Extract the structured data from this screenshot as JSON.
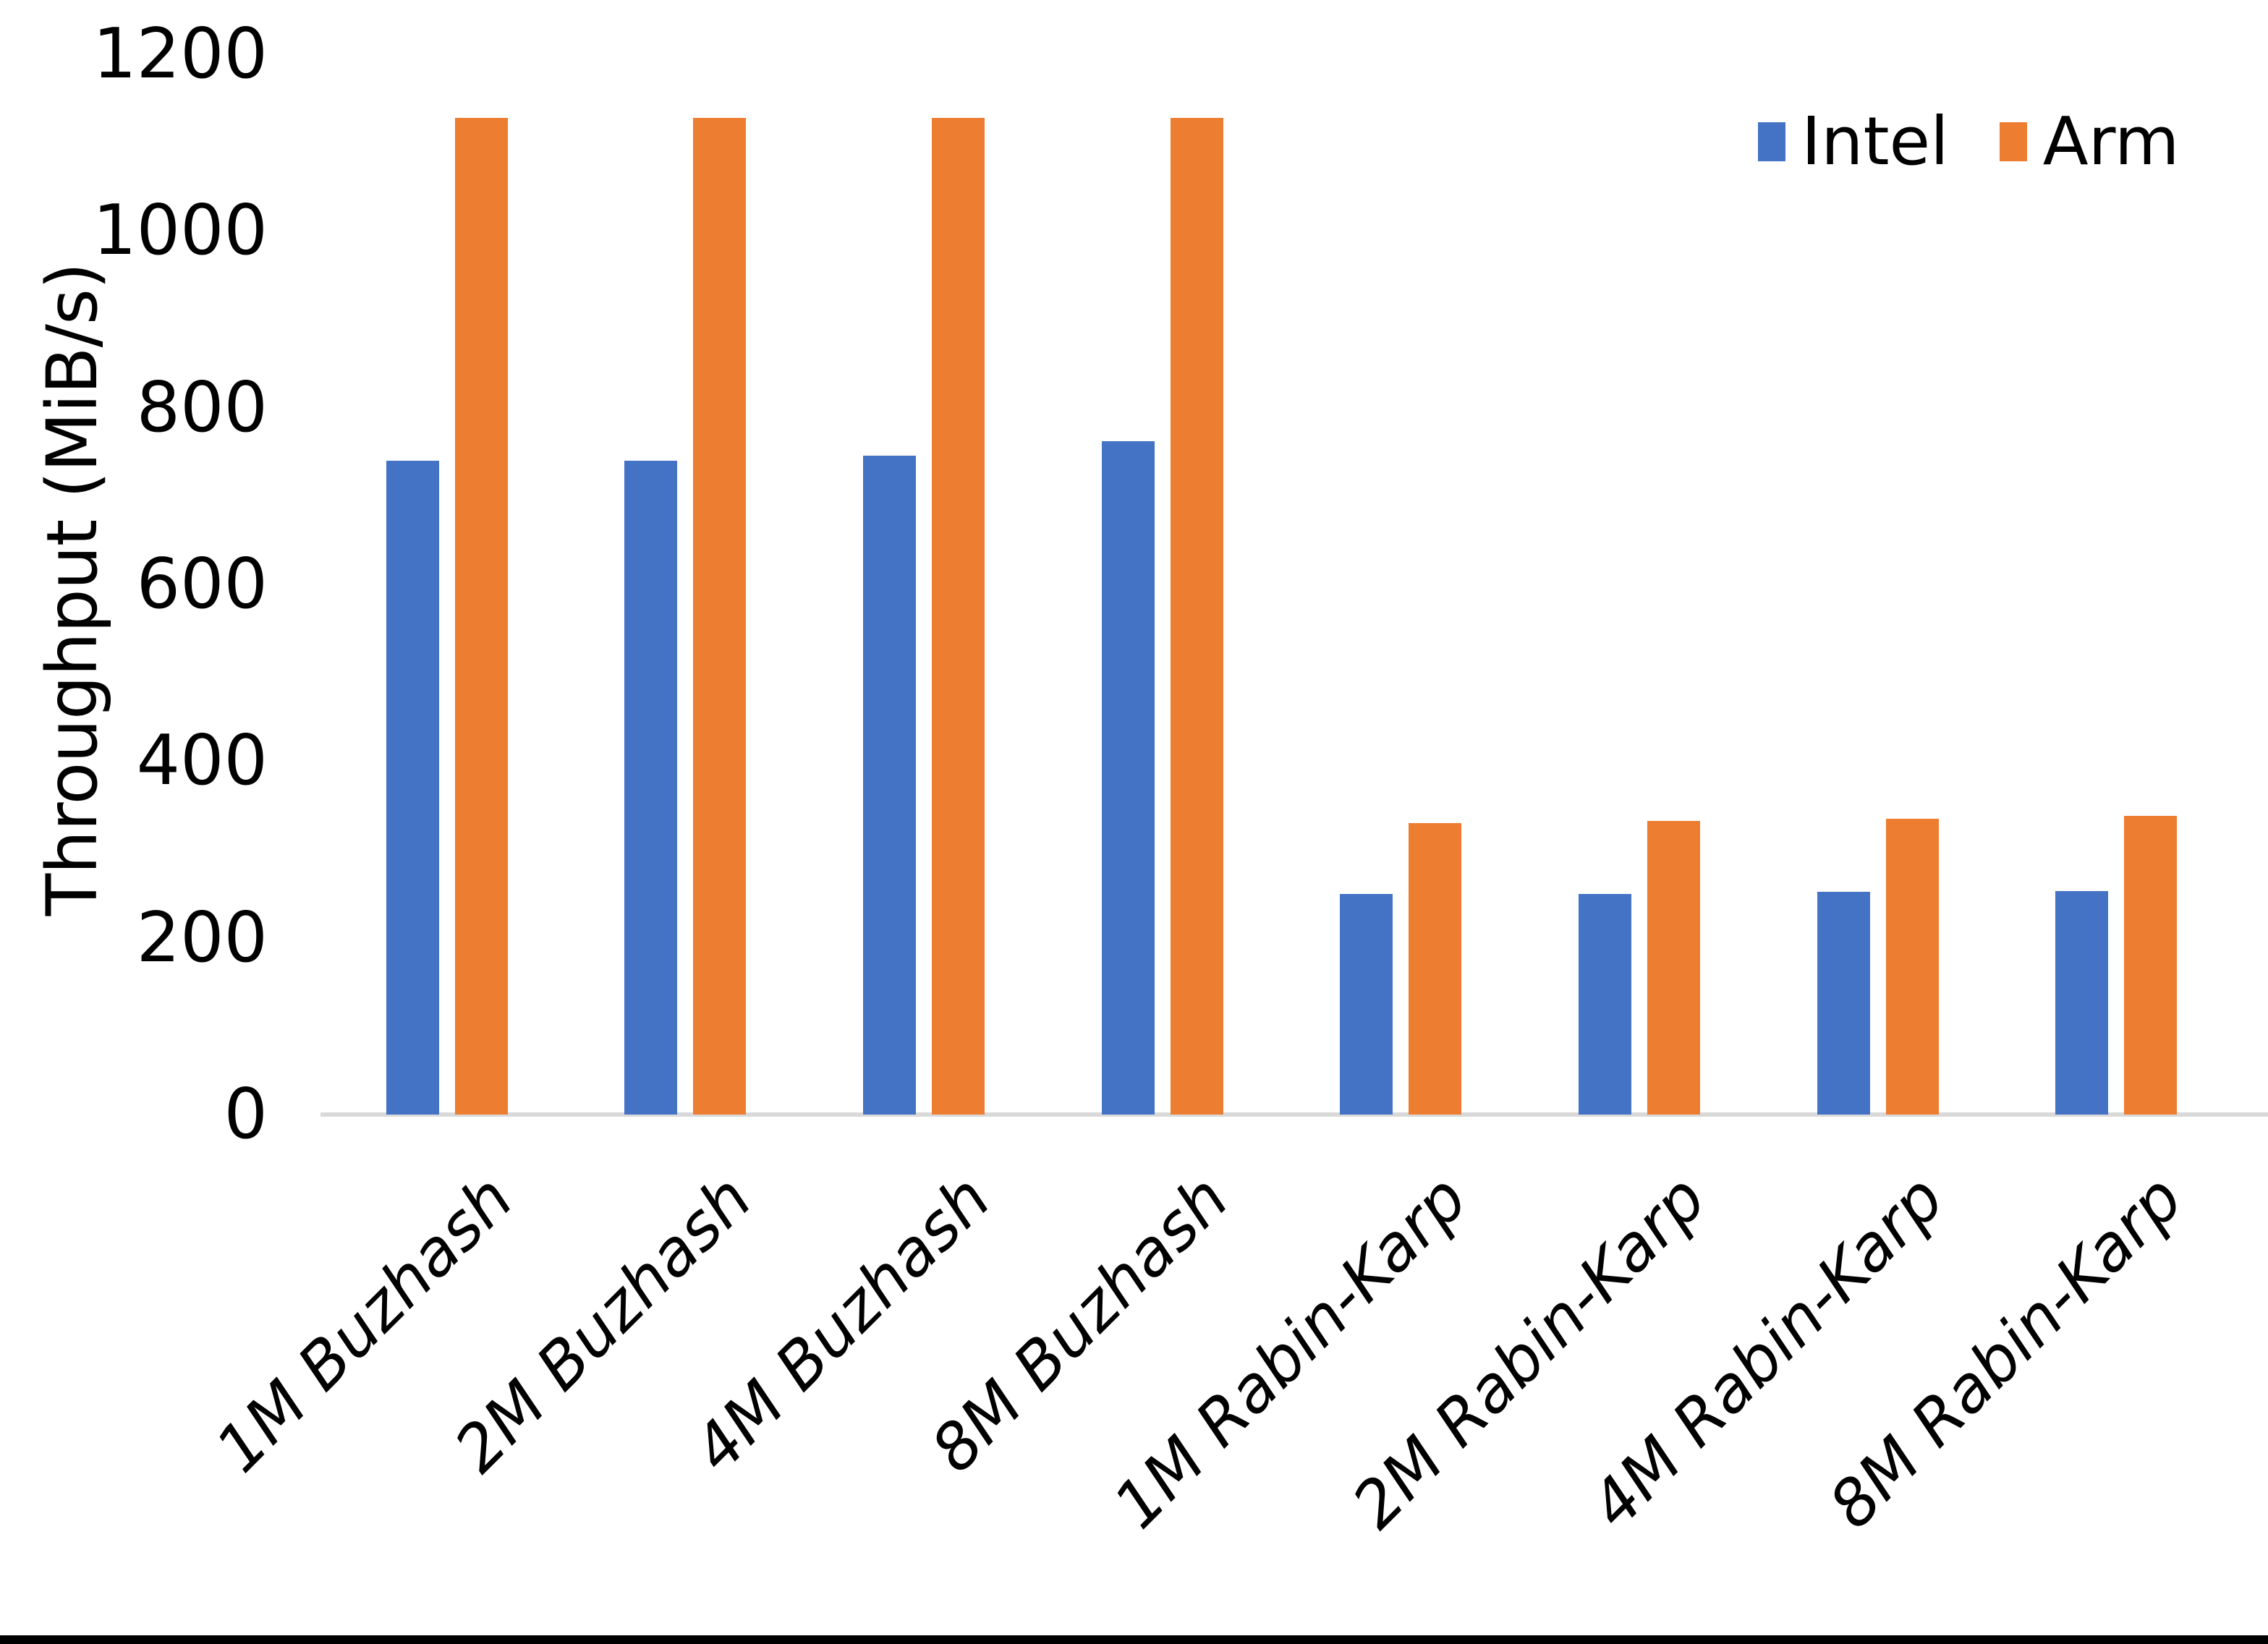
{
  "chart_data": {
    "type": "bar",
    "title": "",
    "xlabel": "",
    "ylabel": "Throughput (MiB/s)",
    "categories": [
      "1M Buzhash",
      "2M Buzhash",
      "4M Buzhash",
      "8M Buzhash",
      "1M Rabin-Karp",
      "2M Rabin-Karp",
      "4M Rabin-Karp",
      "8M Rabin-Karp"
    ],
    "series": [
      {
        "name": "Intel",
        "color": "#4472C4",
        "values": [
          740,
          740,
          746,
          762,
          250,
          250,
          252,
          253
        ]
      },
      {
        "name": "Arm",
        "color": "#ED7D31",
        "values": [
          1128,
          1128,
          1128,
          1128,
          330,
          332,
          335,
          338
        ]
      }
    ],
    "ylim": [
      0,
      1200
    ],
    "yticks": [
      0,
      200,
      400,
      600,
      800,
      1000,
      1200
    ],
    "grid": false,
    "legend_position": "top-right"
  },
  "colors": {
    "background": "#FFFFFF",
    "axis_line": "#D9D9D9",
    "text": "#000000",
    "bottom_bar": "#000000"
  }
}
